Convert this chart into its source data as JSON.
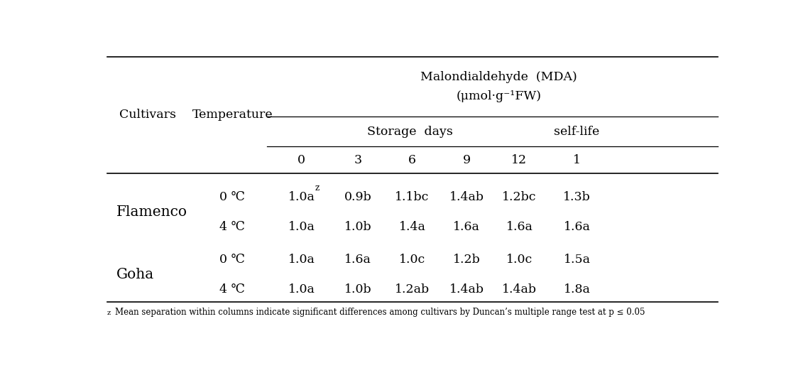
{
  "title_line1": "Malondialdehyde  (MDA)",
  "title_line2": "(μmol·g⁻¹FW)",
  "col_header1": "Storage  days",
  "col_header2": "self-life",
  "col_subheaders": [
    "0",
    "3",
    "6",
    "9",
    "12",
    "1"
  ],
  "cultivars": [
    "Flamenco",
    "Goha"
  ],
  "temp_labels": [
    "0 ℃",
    "4 ℃",
    "0 ℃",
    "4 ℃"
  ],
  "data": [
    [
      "1.0a",
      "z",
      "0.9b",
      "1.1bc",
      "1.4ab",
      "1.2bc",
      "1.3b"
    ],
    [
      "1.0a",
      "",
      "1.0b",
      "1.4a",
      "1.6a",
      "1.6a",
      "1.6a"
    ],
    [
      "1.0a",
      "",
      "1.6a",
      "1.0c",
      "1.2b",
      "1.0c",
      "1.5a"
    ],
    [
      "1.0a",
      "",
      "1.0b",
      "1.2ab",
      "1.4ab",
      "1.4ab",
      "1.8a"
    ]
  ],
  "footnote": "zMean separation within columns indicate significant differences among cultivars by Duncan’s multiple range test at p ≤ 0.05",
  "footnote_z": "z",
  "footnote_rest": "Mean separation within columns indicate significant differences among cultivars by Duncan’s multiple range test at p ≤ 0.05",
  "bg_color": "#ffffff",
  "text_color": "#000000",
  "line_color": "#000000",
  "font_size": 12.5,
  "footnote_font_size": 8.5,
  "cultivar_font_size": 14.5
}
